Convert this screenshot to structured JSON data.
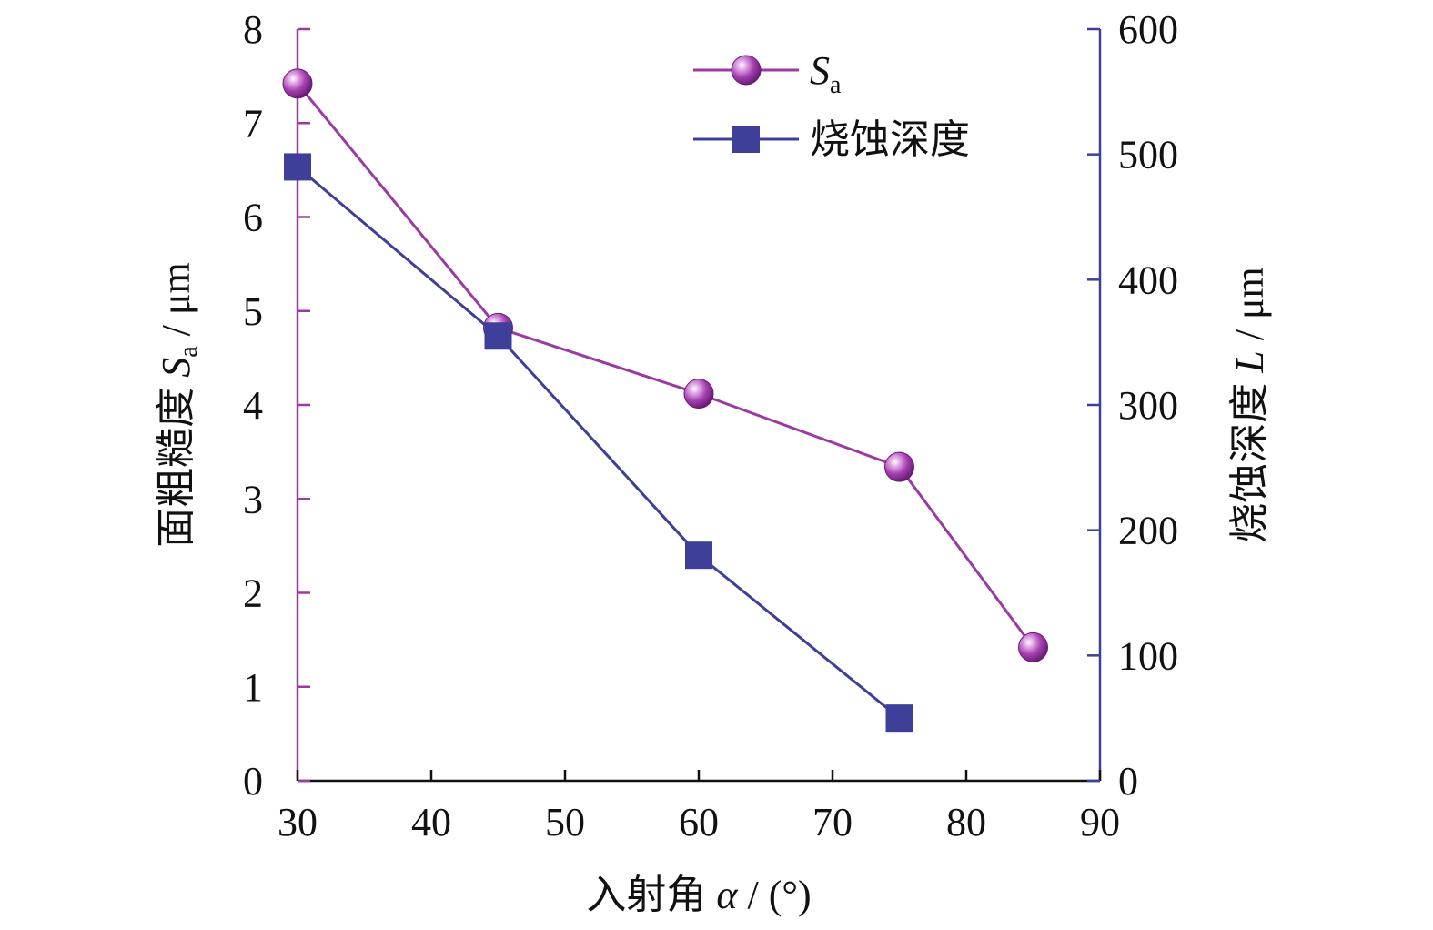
{
  "colors": {
    "sa": "#9b3aa3",
    "depth": "#3d3f98",
    "left_axis": "#9b3aa3",
    "right_axis": "#3d3f98",
    "bottom_axis": "#111111"
  },
  "chart_data": {
    "type": "line",
    "xaxis": {
      "label_main": "入射角 ",
      "label_symbol": "α",
      "label_unit": " / (°)",
      "range": [
        30,
        90
      ],
      "ticks": [
        30,
        40,
        50,
        60,
        70,
        80,
        90
      ]
    },
    "yaxis_left": {
      "label_main": "面粗糙度 ",
      "label_symbol": "S",
      "label_sub": "a",
      "label_unit": " / μm",
      "range": [
        0,
        8
      ],
      "ticks": [
        0,
        1,
        2,
        3,
        4,
        5,
        6,
        7,
        8
      ]
    },
    "yaxis_right": {
      "label_main": "烧蚀深度 ",
      "label_symbol": "L",
      "label_unit": " / μm",
      "range": [
        0,
        600
      ],
      "ticks": [
        0,
        100,
        200,
        300,
        400,
        500,
        600
      ]
    },
    "legend": {
      "placement": "top-right",
      "sa_symbol": "S",
      "sa_sub": "a",
      "depth_label": "烧蚀深度"
    },
    "series": [
      {
        "key": "sa",
        "axis": "left",
        "marker": "circle",
        "x": [
          30,
          45,
          60,
          75,
          85
        ],
        "y": [
          7.42,
          4.82,
          4.12,
          3.34,
          1.42
        ]
      },
      {
        "key": "depth",
        "axis": "right",
        "marker": "square",
        "x": [
          30,
          45,
          60,
          75
        ],
        "y": [
          490,
          355,
          180,
          50
        ]
      }
    ]
  }
}
